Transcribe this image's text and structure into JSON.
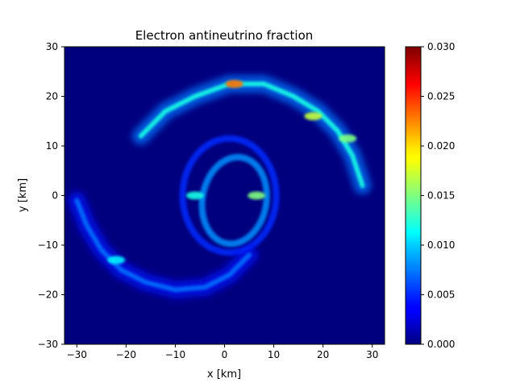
{
  "chart_data": {
    "type": "heatmap",
    "title": "Electron antineutrino fraction",
    "xlabel": "x [km]",
    "ylabel": "y [km]",
    "xlim": [
      -32.5,
      32.5
    ],
    "ylim": [
      -30,
      30
    ],
    "xticks": [
      -30,
      -20,
      -10,
      0,
      10,
      20,
      30
    ],
    "yticks": [
      -30,
      -20,
      -10,
      0,
      10,
      20,
      30
    ],
    "xtick_labels": [
      "−30",
      "−20",
      "−10",
      "0",
      "10",
      "20",
      "30"
    ],
    "ytick_labels": [
      "−30",
      "−20",
      "−10",
      "0",
      "10",
      "20",
      "30"
    ],
    "colorbar": {
      "colormap": "jet",
      "min": 0.0,
      "max": 0.03,
      "ticks": [
        0.0,
        0.005,
        0.01,
        0.015,
        0.02,
        0.025,
        0.03
      ],
      "tick_labels": [
        "0.000",
        "0.005",
        "0.010",
        "0.015",
        "0.020",
        "0.025",
        "0.030"
      ]
    },
    "background_value": 0.0,
    "features": [
      {
        "kind": "ring",
        "cx": 2,
        "cy": -1,
        "rx": 6.5,
        "ry": 8.8,
        "rotation_deg": 10,
        "value": 0.008
      },
      {
        "kind": "ring",
        "cx": 1,
        "cy": 0,
        "rx": 9.5,
        "ry": 11.5,
        "rotation_deg": 0,
        "value": 0.005
      },
      {
        "kind": "spiral_arm",
        "value": 0.012,
        "points": [
          [
            -17,
            12
          ],
          [
            -12,
            17
          ],
          [
            -6,
            20
          ],
          [
            1,
            22.5
          ],
          [
            8,
            22.5
          ],
          [
            14,
            20
          ],
          [
            19,
            17
          ],
          [
            23,
            13
          ],
          [
            26,
            8
          ],
          [
            28,
            2
          ]
        ]
      },
      {
        "kind": "spiral_arm",
        "value": 0.007,
        "points": [
          [
            -30,
            -1
          ],
          [
            -28,
            -6
          ],
          [
            -25,
            -11
          ],
          [
            -21,
            -15
          ],
          [
            -16,
            -17.5
          ],
          [
            -10,
            -19
          ],
          [
            -4,
            -18.5
          ],
          [
            1,
            -16
          ],
          [
            5,
            -12
          ]
        ]
      },
      {
        "kind": "patch",
        "cx": 18,
        "cy": 16,
        "value": 0.017
      },
      {
        "kind": "patch",
        "cx": 25,
        "cy": 11.5,
        "value": 0.015
      },
      {
        "kind": "patch",
        "cx": 2,
        "cy": 22.5,
        "value": 0.023
      },
      {
        "kind": "patch",
        "cx": 6.5,
        "cy": 0,
        "value": 0.015
      },
      {
        "kind": "patch",
        "cx": -6,
        "cy": 0,
        "value": 0.012
      },
      {
        "kind": "patch",
        "cx": -22,
        "cy": -13,
        "value": 0.011
      }
    ]
  }
}
